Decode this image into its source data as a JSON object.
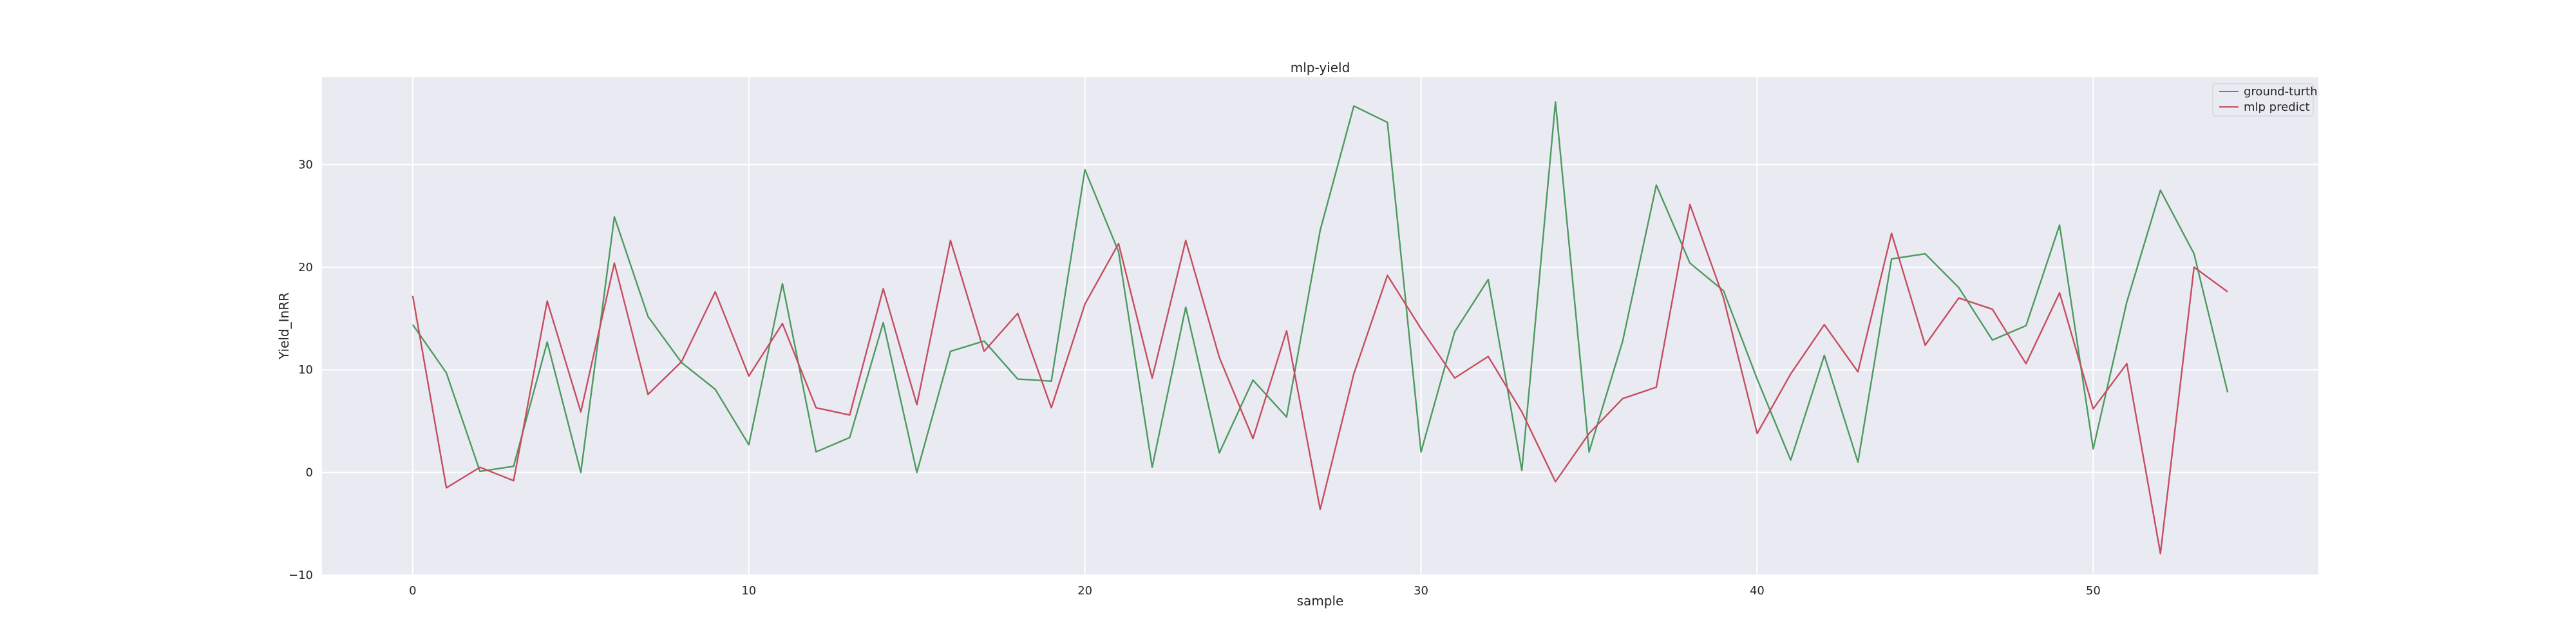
{
  "chart_data": {
    "type": "line",
    "title": "mlp-yield",
    "xlabel": "sample",
    "ylabel": "Yield_InRR",
    "xlim": [
      -2.7,
      56.7
    ],
    "ylim": [
      -10,
      38.5
    ],
    "xticks": [
      0,
      10,
      20,
      30,
      40,
      50
    ],
    "yticks": [
      -10,
      0,
      10,
      20,
      30
    ],
    "grid": true,
    "legend_position": "top-right",
    "x": [
      0,
      1,
      2,
      3,
      4,
      5,
      6,
      7,
      8,
      9,
      10,
      11,
      12,
      13,
      14,
      15,
      16,
      17,
      18,
      19,
      20,
      21,
      22,
      23,
      24,
      25,
      26,
      27,
      28,
      29,
      30,
      31,
      32,
      33,
      34,
      35,
      36,
      37,
      38,
      39,
      40,
      41,
      42,
      43,
      44,
      45,
      46,
      47,
      48,
      49,
      50,
      51,
      52,
      53,
      54
    ],
    "series": [
      {
        "name": "ground-turth",
        "color": "#4c9a5f",
        "values": [
          14.4,
          9.7,
          0.1,
          0.6,
          12.7,
          0.0,
          24.9,
          15.2,
          10.7,
          8.1,
          2.7,
          18.4,
          2.0,
          3.4,
          14.6,
          0.0,
          11.8,
          12.8,
          9.1,
          8.9,
          29.5,
          21.5,
          0.5,
          16.1,
          1.9,
          9.0,
          5.4,
          23.6,
          35.7,
          34.1,
          2.0,
          13.7,
          18.8,
          0.2,
          36.1,
          2.0,
          12.8,
          28.0,
          20.4,
          17.7,
          9.1,
          1.2,
          11.4,
          1.0,
          20.8,
          21.3,
          18.0,
          12.9,
          14.3,
          24.1,
          2.3,
          16.6,
          27.5,
          21.3,
          7.8
        ]
      },
      {
        "name": "mlp predict",
        "color": "#c44e5f",
        "values": [
          17.2,
          -1.5,
          0.5,
          -0.8,
          16.7,
          5.9,
          20.4,
          7.6,
          10.8,
          17.6,
          9.4,
          14.5,
          6.3,
          5.6,
          17.9,
          6.6,
          22.6,
          11.8,
          15.5,
          6.3,
          16.4,
          22.3,
          9.2,
          22.6,
          11.2,
          3.3,
          13.8,
          -3.6,
          9.6,
          19.2,
          14.0,
          9.2,
          11.3,
          5.9,
          -0.9,
          3.8,
          7.2,
          8.3,
          26.1,
          17.0,
          3.8,
          9.6,
          14.4,
          9.8,
          23.3,
          12.4,
          17.0,
          15.9,
          10.6,
          17.5,
          6.2,
          10.6,
          -7.9,
          20.0,
          17.6
        ]
      }
    ]
  }
}
